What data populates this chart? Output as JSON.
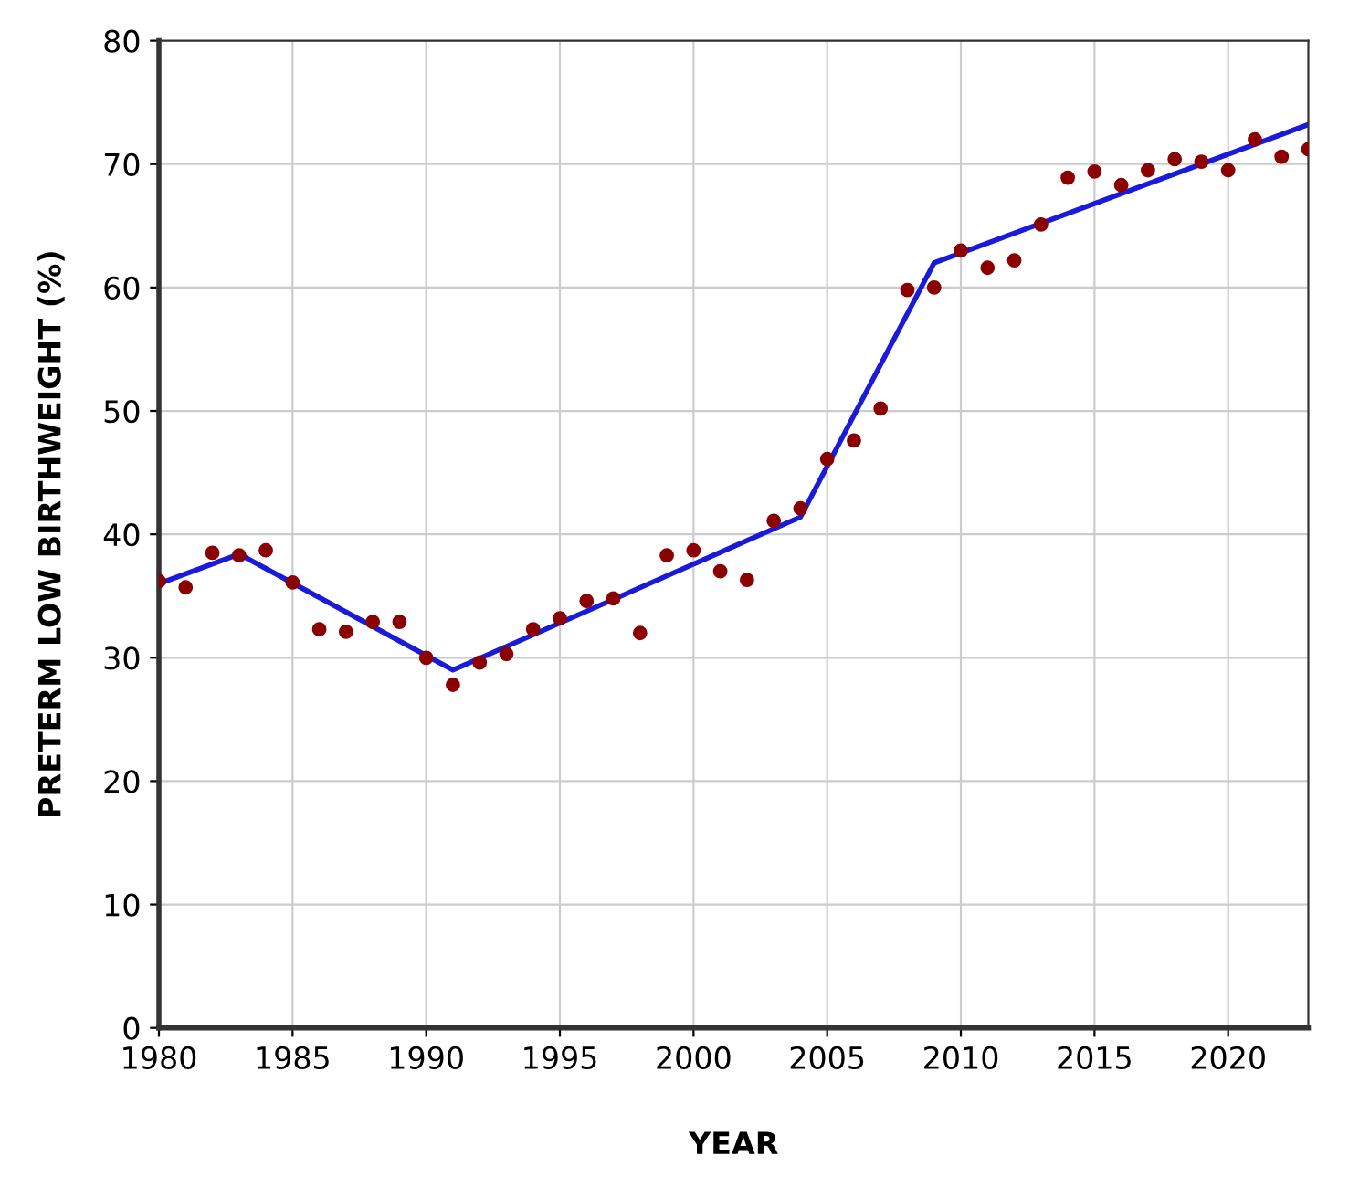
{
  "chart_data": {
    "type": "scatter",
    "xlabel": "YEAR",
    "ylabel": "PRETERM LOW BIRTHWEIGHT (%)",
    "xlim": [
      1980,
      2023
    ],
    "xticks": [
      1980,
      1985,
      1990,
      1995,
      2000,
      2005,
      2010,
      2015,
      2020
    ],
    "ylim": [
      0,
      80
    ],
    "yticks": [
      0,
      10,
      20,
      30,
      40,
      50,
      60,
      70,
      80
    ],
    "grid": true,
    "legend": false,
    "series": [
      {
        "color": "#8b0000",
        "marker": "circle",
        "x": [
          1980,
          1981,
          1982,
          1983,
          1984,
          1985,
          1986,
          1987,
          1988,
          1989,
          1990,
          1991,
          1992,
          1993,
          1994,
          1995,
          1996,
          1997,
          1998,
          1999,
          2000,
          2001,
          2002,
          2003,
          2004,
          2005,
          2006,
          2007,
          2008,
          2009,
          2010,
          2011,
          2012,
          2013,
          2014,
          2015,
          2016,
          2017,
          2018,
          2019,
          2020,
          2021,
          2022,
          2023
        ],
        "values": [
          36.2,
          35.7,
          38.5,
          38.3,
          38.7,
          36.1,
          32.3,
          32.1,
          32.9,
          32.9,
          30.0,
          27.8,
          29.6,
          30.3,
          32.3,
          33.2,
          34.6,
          34.8,
          32.0,
          38.3,
          38.7,
          37.0,
          36.3,
          41.1,
          42.1,
          46.1,
          47.6,
          50.2,
          59.8,
          60.0,
          63.0,
          61.6,
          62.2,
          65.1,
          68.9,
          69.4,
          68.3,
          69.5,
          70.4,
          70.2,
          69.5,
          72.0,
          70.6,
          71.2
        ]
      },
      {
        "type": "line",
        "color": "#1a1adb",
        "marker": "none",
        "line_style": "solid",
        "x": [
          1980,
          1983,
          1991,
          2004,
          2009,
          2023
        ],
        "values": [
          36.0,
          38.4,
          29.0,
          41.4,
          62.0,
          73.2
        ]
      }
    ]
  }
}
